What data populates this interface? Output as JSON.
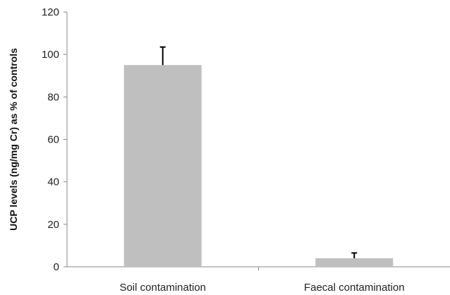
{
  "chart_data": {
    "type": "bar",
    "title": "",
    "xlabel": "",
    "ylabel": "UCP levels (ng/mg Cr) as % of controls",
    "ylim": [
      0,
      120
    ],
    "yticks": [
      0,
      20,
      40,
      60,
      80,
      100,
      120
    ],
    "grid": false,
    "legend": "none",
    "categories": [
      "Soil contamination",
      "Faecal contamination"
    ],
    "values": [
      95,
      4
    ],
    "error_upper": [
      8.5,
      2.5
    ],
    "colors": {
      "bar": "#bfbfbf",
      "axis": "#888888",
      "error_bar": "#000000"
    }
  }
}
